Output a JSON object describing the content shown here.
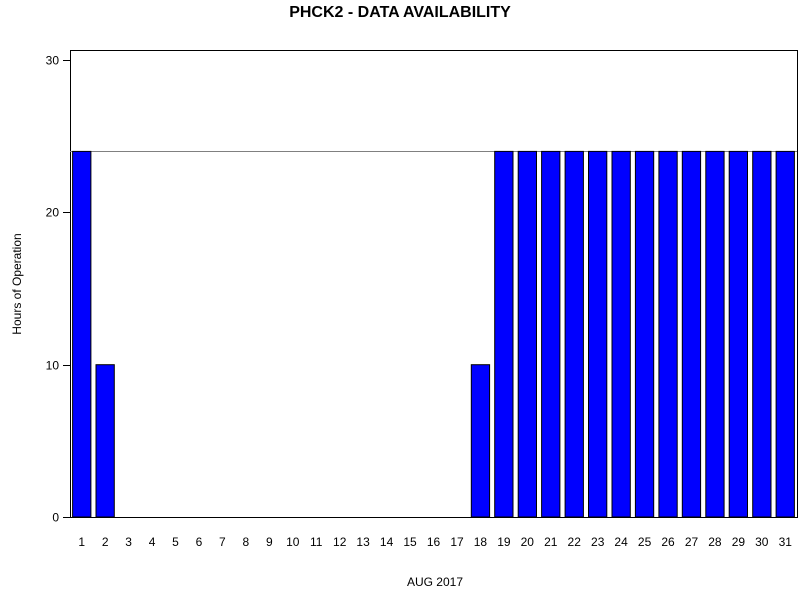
{
  "chart_data": {
    "type": "bar",
    "title": "PHCK2 - DATA AVAILABILITY",
    "xlabel": "AUG 2017",
    "ylabel": "Hours of Operation",
    "ylim": [
      0,
      30
    ],
    "yticks": [
      0,
      10,
      20,
      30
    ],
    "reference_line": 24,
    "grid": false,
    "legend": "none",
    "categories": [
      "1",
      "2",
      "3",
      "4",
      "5",
      "6",
      "7",
      "8",
      "9",
      "10",
      "11",
      "12",
      "13",
      "14",
      "15",
      "16",
      "17",
      "18",
      "19",
      "20",
      "21",
      "22",
      "23",
      "24",
      "25",
      "26",
      "27",
      "28",
      "29",
      "30",
      "31"
    ],
    "values": [
      24,
      10,
      0,
      0,
      0,
      0,
      0,
      0,
      0,
      0,
      0,
      0,
      0,
      0,
      0,
      0,
      0,
      10,
      24,
      24,
      24,
      24,
      24,
      24,
      24,
      24,
      24,
      24,
      24,
      24,
      24
    ],
    "colors": {
      "bar_fill": "#0000ff",
      "bar_stroke": "#000000",
      "axis": "#000000",
      "reference_line": "#808080",
      "background": "#ffffff"
    }
  }
}
